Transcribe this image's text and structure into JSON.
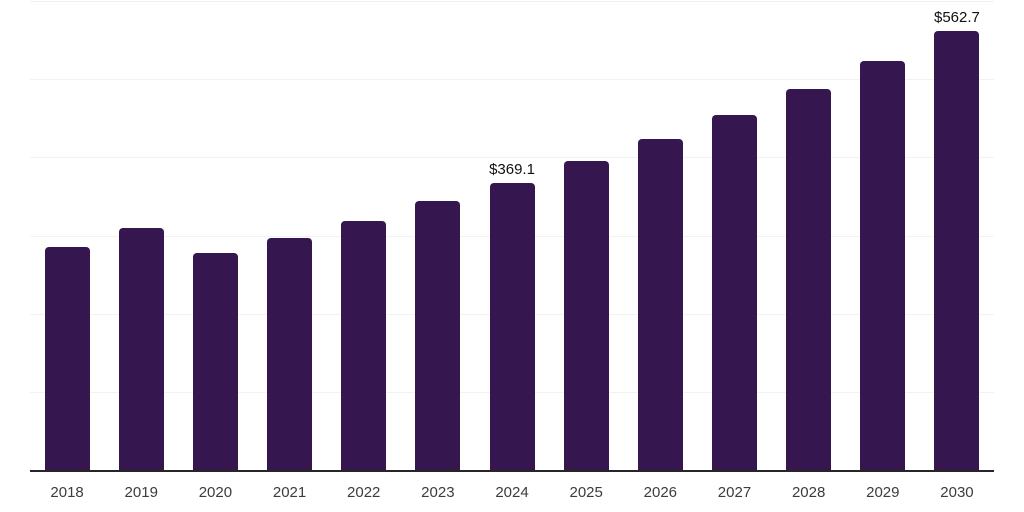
{
  "chart_data": {
    "type": "bar",
    "title": "",
    "xlabel": "",
    "ylabel": "",
    "categories": [
      "2018",
      "2019",
      "2020",
      "2021",
      "2022",
      "2023",
      "2024",
      "2025",
      "2026",
      "2027",
      "2028",
      "2029",
      "2030"
    ],
    "values": [
      286.5,
      310.5,
      278.4,
      298.4,
      319.8,
      345.3,
      369.1,
      396.0,
      424.8,
      455.8,
      489.0,
      524.6,
      562.7
    ],
    "value_labels": [
      {
        "category": "2024",
        "text": "$369.1"
      },
      {
        "category": "2030",
        "text": "$562.7"
      }
    ],
    "ylim": [
      0,
      600
    ],
    "grid": true,
    "grid_interval": 100,
    "y_tick_labels_visible": false,
    "legend": false,
    "colors": {
      "bar": "#35164f",
      "gridline": "#f2f2f4",
      "axis_line": "#262626",
      "x_label": "#3c3c3c",
      "annotation": "#111111"
    }
  }
}
